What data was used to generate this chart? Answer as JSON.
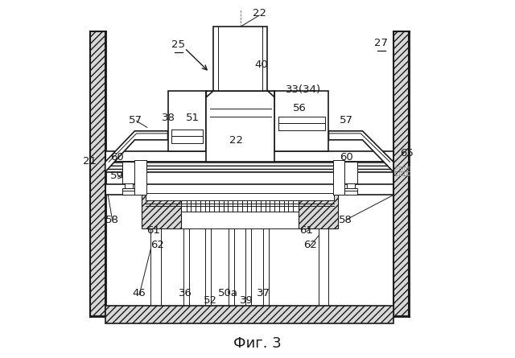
{
  "bg_color": "#ffffff",
  "line_color": "#1a1a1a",
  "fig_label": "Фиг. 3",
  "title_fontsize": 13,
  "label_fontsize": 9.5
}
